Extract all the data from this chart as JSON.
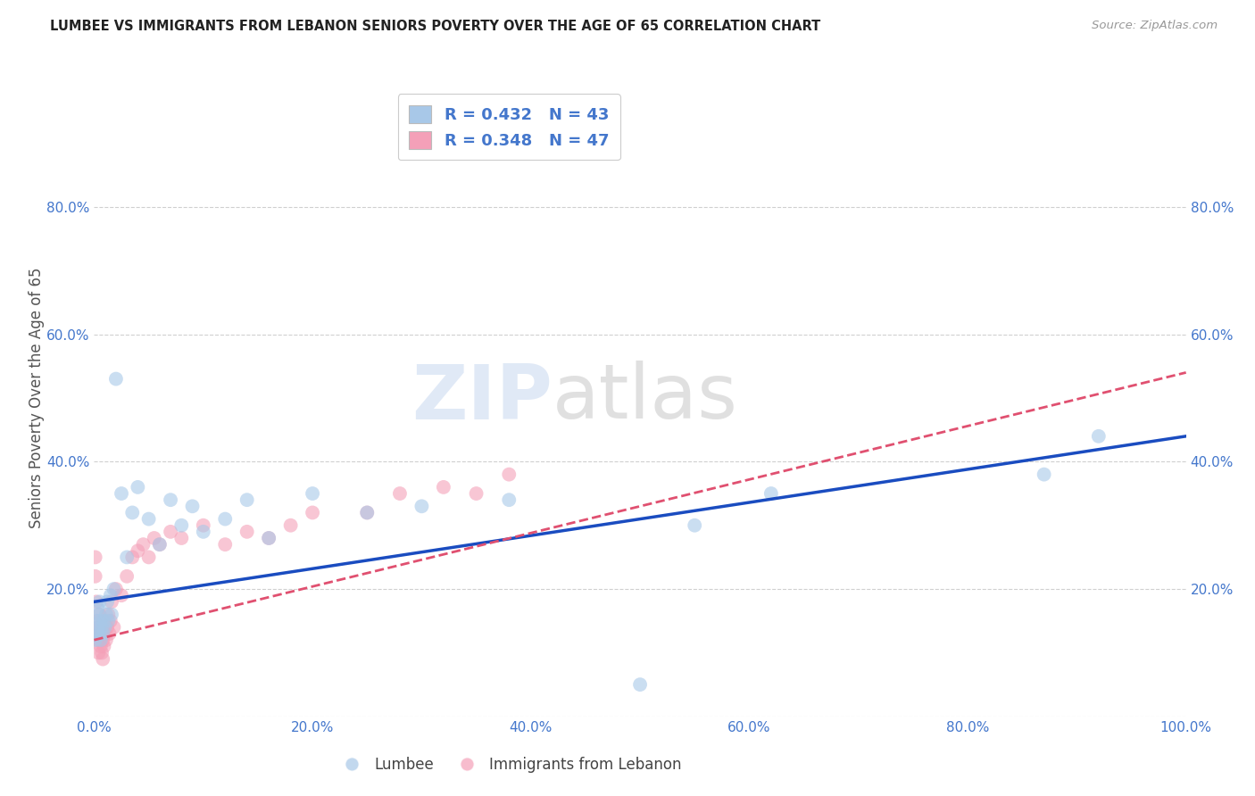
{
  "title": "LUMBEE VS IMMIGRANTS FROM LEBANON SENIORS POVERTY OVER THE AGE OF 65 CORRELATION CHART",
  "source": "Source: ZipAtlas.com",
  "ylabel": "Seniors Poverty Over the Age of 65",
  "xlim": [
    0.0,
    1.0
  ],
  "ylim": [
    0.0,
    1.0
  ],
  "xticks": [
    0.0,
    0.2,
    0.4,
    0.6,
    0.8,
    1.0
  ],
  "yticks": [
    0.0,
    0.2,
    0.4,
    0.6,
    0.8
  ],
  "xticklabels": [
    "0.0%",
    "20.0%",
    "40.0%",
    "60.0%",
    "80.0%",
    "100.0%"
  ],
  "left_yticklabels": [
    "",
    "20.0%",
    "40.0%",
    "60.0%",
    "80.0%"
  ],
  "right_yticklabels": [
    "20.0%",
    "40.0%",
    "60.0%",
    "80.0%"
  ],
  "right_yticks": [
    0.2,
    0.4,
    0.6,
    0.8
  ],
  "lumbee_R": 0.432,
  "lumbee_N": 43,
  "lebanon_R": 0.348,
  "lebanon_N": 47,
  "lumbee_color": "#a8c8e8",
  "lebanon_color": "#f4a0b8",
  "lumbee_line_color": "#1a4cc0",
  "lebanon_line_color": "#e05070",
  "background_color": "#ffffff",
  "grid_color": "#d0d0d0",
  "title_color": "#222222",
  "watermark": "ZIPatlas",
  "tick_color": "#4477cc",
  "lumbee_x": [
    0.001,
    0.002,
    0.003,
    0.003,
    0.004,
    0.004,
    0.005,
    0.005,
    0.006,
    0.006,
    0.007,
    0.008,
    0.009,
    0.01,
    0.011,
    0.012,
    0.013,
    0.015,
    0.016,
    0.018,
    0.02,
    0.025,
    0.03,
    0.035,
    0.04,
    0.05,
    0.06,
    0.07,
    0.08,
    0.09,
    0.1,
    0.12,
    0.14,
    0.16,
    0.2,
    0.25,
    0.3,
    0.38,
    0.5,
    0.55,
    0.62,
    0.87,
    0.92
  ],
  "lumbee_y": [
    0.12,
    0.15,
    0.13,
    0.17,
    0.14,
    0.16,
    0.13,
    0.18,
    0.12,
    0.15,
    0.14,
    0.13,
    0.15,
    0.14,
    0.16,
    0.18,
    0.15,
    0.19,
    0.16,
    0.2,
    0.53,
    0.35,
    0.25,
    0.32,
    0.36,
    0.31,
    0.27,
    0.34,
    0.3,
    0.33,
    0.29,
    0.31,
    0.34,
    0.28,
    0.35,
    0.32,
    0.33,
    0.34,
    0.05,
    0.3,
    0.35,
    0.38,
    0.44
  ],
  "lebanon_x": [
    0.001,
    0.001,
    0.002,
    0.002,
    0.003,
    0.003,
    0.004,
    0.004,
    0.005,
    0.005,
    0.006,
    0.006,
    0.007,
    0.007,
    0.008,
    0.008,
    0.009,
    0.01,
    0.011,
    0.012,
    0.013,
    0.014,
    0.015,
    0.016,
    0.018,
    0.02,
    0.025,
    0.03,
    0.035,
    0.04,
    0.045,
    0.05,
    0.055,
    0.06,
    0.07,
    0.08,
    0.1,
    0.12,
    0.14,
    0.16,
    0.18,
    0.2,
    0.25,
    0.28,
    0.32,
    0.35,
    0.38
  ],
  "lebanon_y": [
    0.25,
    0.22,
    0.18,
    0.13,
    0.15,
    0.12,
    0.14,
    0.1,
    0.16,
    0.12,
    0.13,
    0.11,
    0.14,
    0.1,
    0.12,
    0.09,
    0.11,
    0.13,
    0.12,
    0.14,
    0.16,
    0.13,
    0.15,
    0.18,
    0.14,
    0.2,
    0.19,
    0.22,
    0.25,
    0.26,
    0.27,
    0.25,
    0.28,
    0.27,
    0.29,
    0.28,
    0.3,
    0.27,
    0.29,
    0.28,
    0.3,
    0.32,
    0.32,
    0.35,
    0.36,
    0.35,
    0.38
  ],
  "lumbee_line_x0": 0.0,
  "lumbee_line_y0": 0.18,
  "lumbee_line_x1": 1.0,
  "lumbee_line_y1": 0.44,
  "lebanon_line_x0": 0.0,
  "lebanon_line_y0": 0.12,
  "lebanon_line_x1": 1.0,
  "lebanon_line_y1": 0.54
}
